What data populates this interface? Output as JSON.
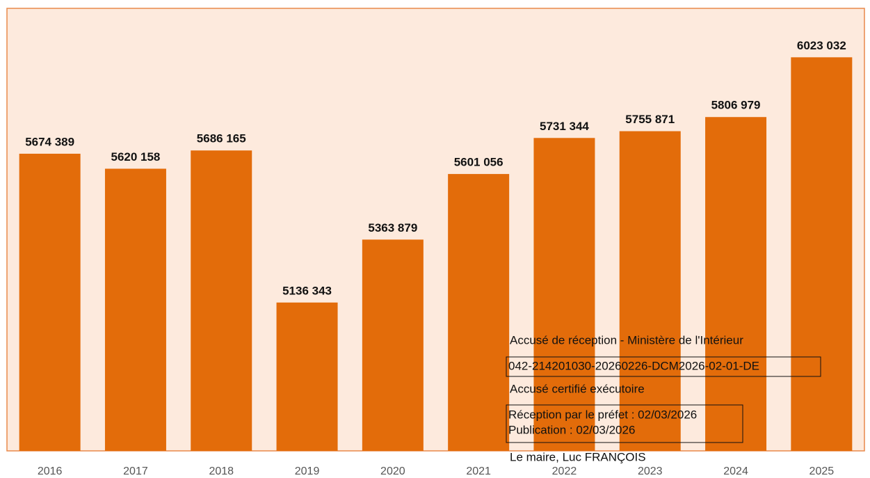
{
  "chart_data": {
    "type": "bar",
    "categories": [
      "2016",
      "2017",
      "2018",
      "2019",
      "2020",
      "2021",
      "2022",
      "2023",
      "2024",
      "2025"
    ],
    "values": [
      5674389,
      5620158,
      5686165,
      5136343,
      5363879,
      5601056,
      5731344,
      5755871,
      5806979,
      6023032
    ],
    "value_labels": [
      "5674 389",
      "5620 158",
      "5686 165",
      "5136 343",
      "5363 879",
      "5601 056",
      "5731 344",
      "5755 871",
      "5806 979",
      "6023 032"
    ],
    "color": "#e36c0a",
    "ylim": [
      4600000,
      6200000
    ]
  },
  "stamp": {
    "line1": "Accusé de réception - Ministère de l'Intérieur",
    "line2": "042-214201030-20260226-DCM2026-02-01-DE",
    "line3": "Accusé certifié exécutoire",
    "line4": "Réception par le préfet : 02/03/2026",
    "line5": "Publication : 02/03/2026",
    "line6": "Le maire, Luc FRANÇOIS"
  }
}
